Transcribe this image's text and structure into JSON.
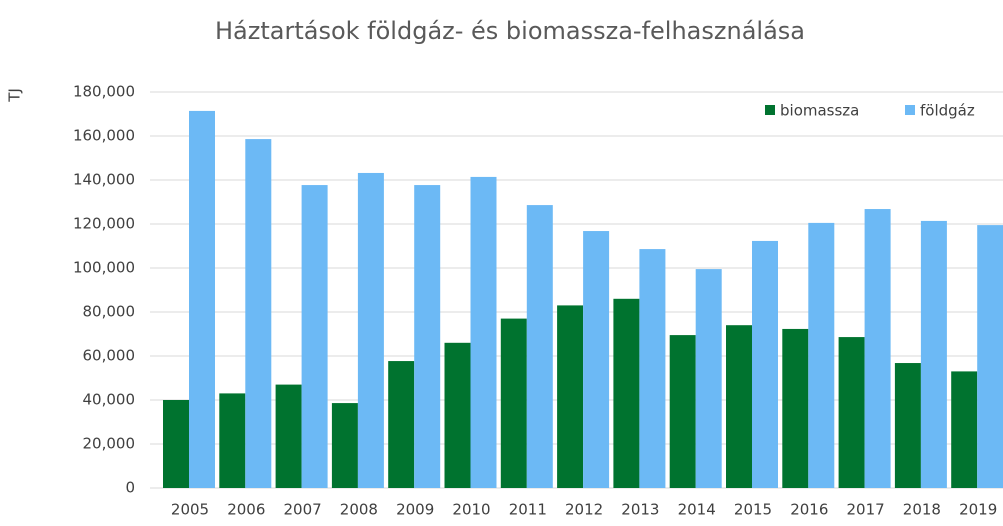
{
  "chart_data": {
    "type": "bar",
    "title": "Háztartások földgáz- és biomassza-felhasználása",
    "y_label": "TJ",
    "categories": [
      "2005",
      "2006",
      "2007",
      "2008",
      "2009",
      "2010",
      "2011",
      "2012",
      "2013",
      "2014",
      "2015",
      "2016",
      "2017",
      "2018",
      "2019"
    ],
    "series": [
      {
        "name": "biomassza",
        "color": "#00732f",
        "values": [
          40000,
          43000,
          47000,
          38600,
          57700,
          66000,
          77000,
          83000,
          86000,
          69500,
          74000,
          72300,
          68600,
          56800,
          53000
        ]
      },
      {
        "name": "földgáz",
        "color": "#6cb9f5",
        "values": [
          171400,
          158600,
          137700,
          143200,
          137700,
          141400,
          128600,
          116800,
          108600,
          99500,
          112300,
          120500,
          126800,
          121400,
          119500
        ]
      }
    ],
    "ylim": [
      0,
      180000
    ],
    "yticks": [
      0,
      {
        "value": 20000,
        "label": "20,000"
      },
      {
        "value": 40000,
        "label": "40,000"
      },
      {
        "value": 60000,
        "label": "60,000"
      },
      {
        "value": 80000,
        "label": "80,000"
      },
      {
        "value": 100000,
        "label": "100,000"
      },
      {
        "value": 120000,
        "label": "120,000"
      },
      {
        "value": 140000,
        "label": "140,000"
      },
      {
        "value": 160000,
        "label": "160,000"
      },
      {
        "value": 180000,
        "label": "180,000"
      }
    ],
    "grid": true,
    "legend": "top-right"
  }
}
